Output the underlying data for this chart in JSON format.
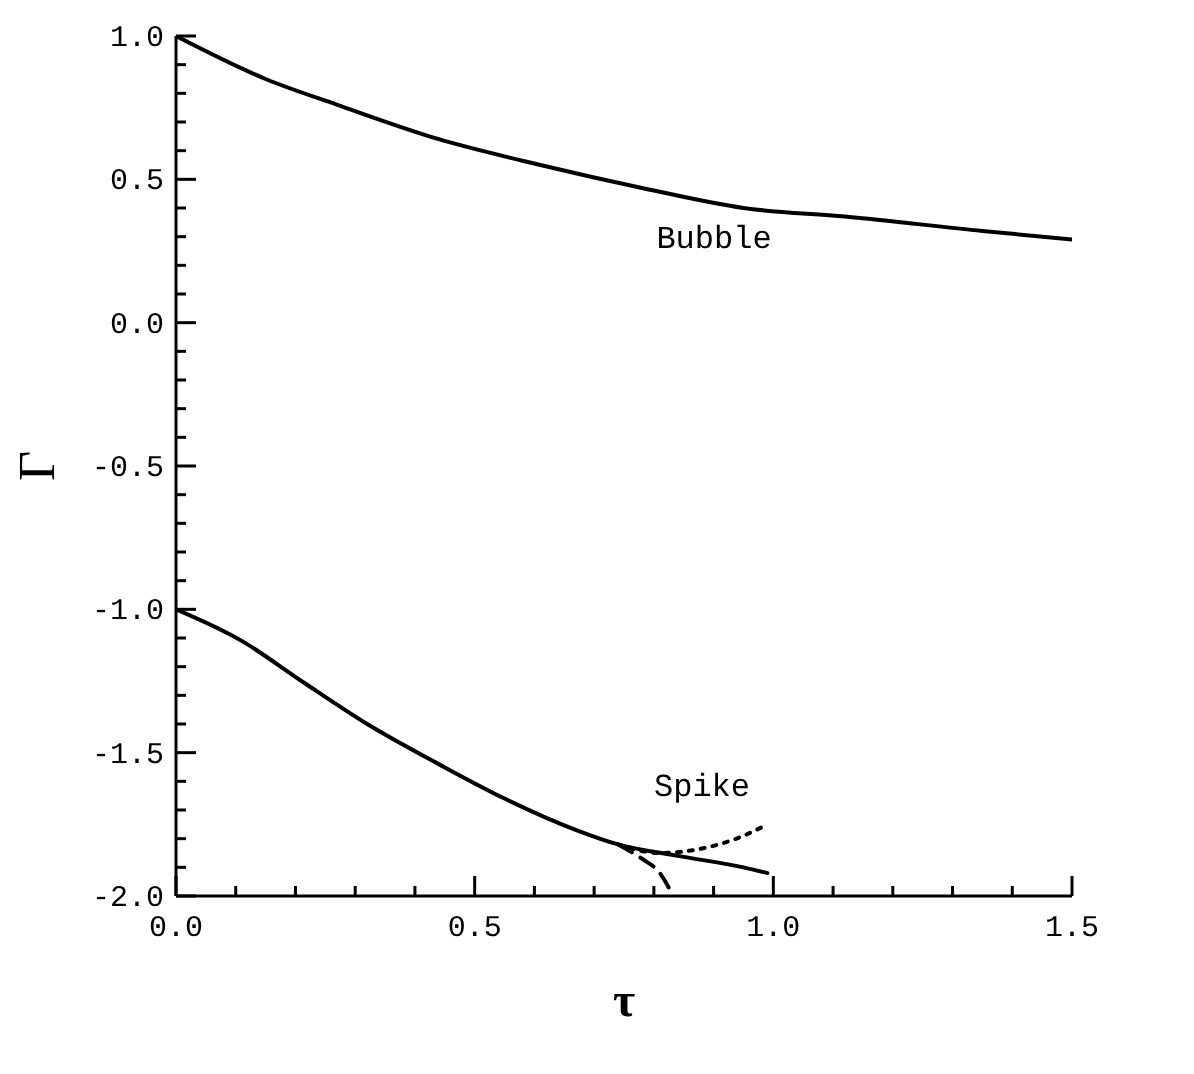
{
  "chart_data": {
    "type": "line",
    "xlabel": "τ",
    "ylabel": "Γ",
    "xlim": [
      0,
      1.5
    ],
    "ylim": [
      -2,
      1
    ],
    "xticks": [
      {
        "value": 0,
        "label": "0.0"
      },
      {
        "value": 0.1,
        "label": null
      },
      {
        "value": 0.2,
        "label": null
      },
      {
        "value": 0.3,
        "label": null
      },
      {
        "value": 0.4,
        "label": null
      },
      {
        "value": 0.5,
        "label": "0.5"
      },
      {
        "value": 0.6,
        "label": null
      },
      {
        "value": 0.7,
        "label": null
      },
      {
        "value": 0.8,
        "label": null
      },
      {
        "value": 0.9,
        "label": null
      },
      {
        "value": 1,
        "label": "1.0"
      },
      {
        "value": 1.1,
        "label": null
      },
      {
        "value": 1.2,
        "label": null
      },
      {
        "value": 1.3,
        "label": null
      },
      {
        "value": 1.4,
        "label": null
      },
      {
        "value": 1.5,
        "label": "1.5"
      }
    ],
    "yticks": [
      {
        "value": -2,
        "label": "-2.0"
      },
      {
        "value": -1.9,
        "label": null
      },
      {
        "value": -1.8,
        "label": null
      },
      {
        "value": -1.7,
        "label": null
      },
      {
        "value": -1.6,
        "label": null
      },
      {
        "value": -1.5,
        "label": "-1.5"
      },
      {
        "value": -1.4,
        "label": null
      },
      {
        "value": -1.3,
        "label": null
      },
      {
        "value": -1.2,
        "label": null
      },
      {
        "value": -1.1,
        "label": null
      },
      {
        "value": -1,
        "label": "-1.0"
      },
      {
        "value": -0.9,
        "label": null
      },
      {
        "value": -0.8,
        "label": null
      },
      {
        "value": -0.7,
        "label": null
      },
      {
        "value": -0.6,
        "label": null
      },
      {
        "value": -0.5,
        "label": "-0.5"
      },
      {
        "value": -0.4,
        "label": null
      },
      {
        "value": -0.3,
        "label": null
      },
      {
        "value": -0.2,
        "label": null
      },
      {
        "value": -0.1,
        "label": null
      },
      {
        "value": 0,
        "label": "0.0"
      },
      {
        "value": 0.1,
        "label": null
      },
      {
        "value": 0.2,
        "label": null
      },
      {
        "value": 0.3,
        "label": null
      },
      {
        "value": 0.4,
        "label": null
      },
      {
        "value": 0.5,
        "label": "0.5"
      },
      {
        "value": 0.6,
        "label": null
      },
      {
        "value": 0.7,
        "label": null
      },
      {
        "value": 0.8,
        "label": null
      },
      {
        "value": 0.9,
        "label": null
      },
      {
        "value": 1,
        "label": "1.0"
      }
    ],
    "marker": "none",
    "series": [
      {
        "color": "#000000",
        "line_style": "solid",
        "x": [
          0,
          0.15,
          0.27,
          0.44,
          0.61,
          0.78,
          0.95,
          1.12,
          1.35,
          1.5
        ],
        "values": [
          1,
          0.85,
          0.76,
          0.64,
          0.55,
          0.47,
          0.4,
          0.37,
          0.32,
          0.29
        ]
      },
      {
        "color": "#000000",
        "line_style": "solid",
        "x": [
          0,
          0.11,
          0.21,
          0.32,
          0.44,
          0.55,
          0.67,
          0.74,
          0.84,
          0.95,
          0.99
        ],
        "values": [
          -1,
          -1.11,
          -1.25,
          -1.4,
          -1.54,
          -1.66,
          -1.77,
          -1.82,
          -1.86,
          -1.9,
          -1.92
        ]
      },
      {
        "color": "#000000",
        "line_style": "dotted",
        "x": [
          0.74,
          0.81,
          0.89,
          0.95,
          0.99
        ],
        "values": [
          -1.82,
          -1.85,
          -1.83,
          -1.79,
          -1.75
        ]
      },
      {
        "color": "#000000",
        "line_style": "dashed",
        "x": [
          0.74,
          0.78,
          0.81,
          0.83
        ],
        "values": [
          -1.82,
          -1.87,
          -1.92,
          -1.99
        ]
      }
    ],
    "annotations": [
      "Bubble",
      "Spike"
    ]
  }
}
